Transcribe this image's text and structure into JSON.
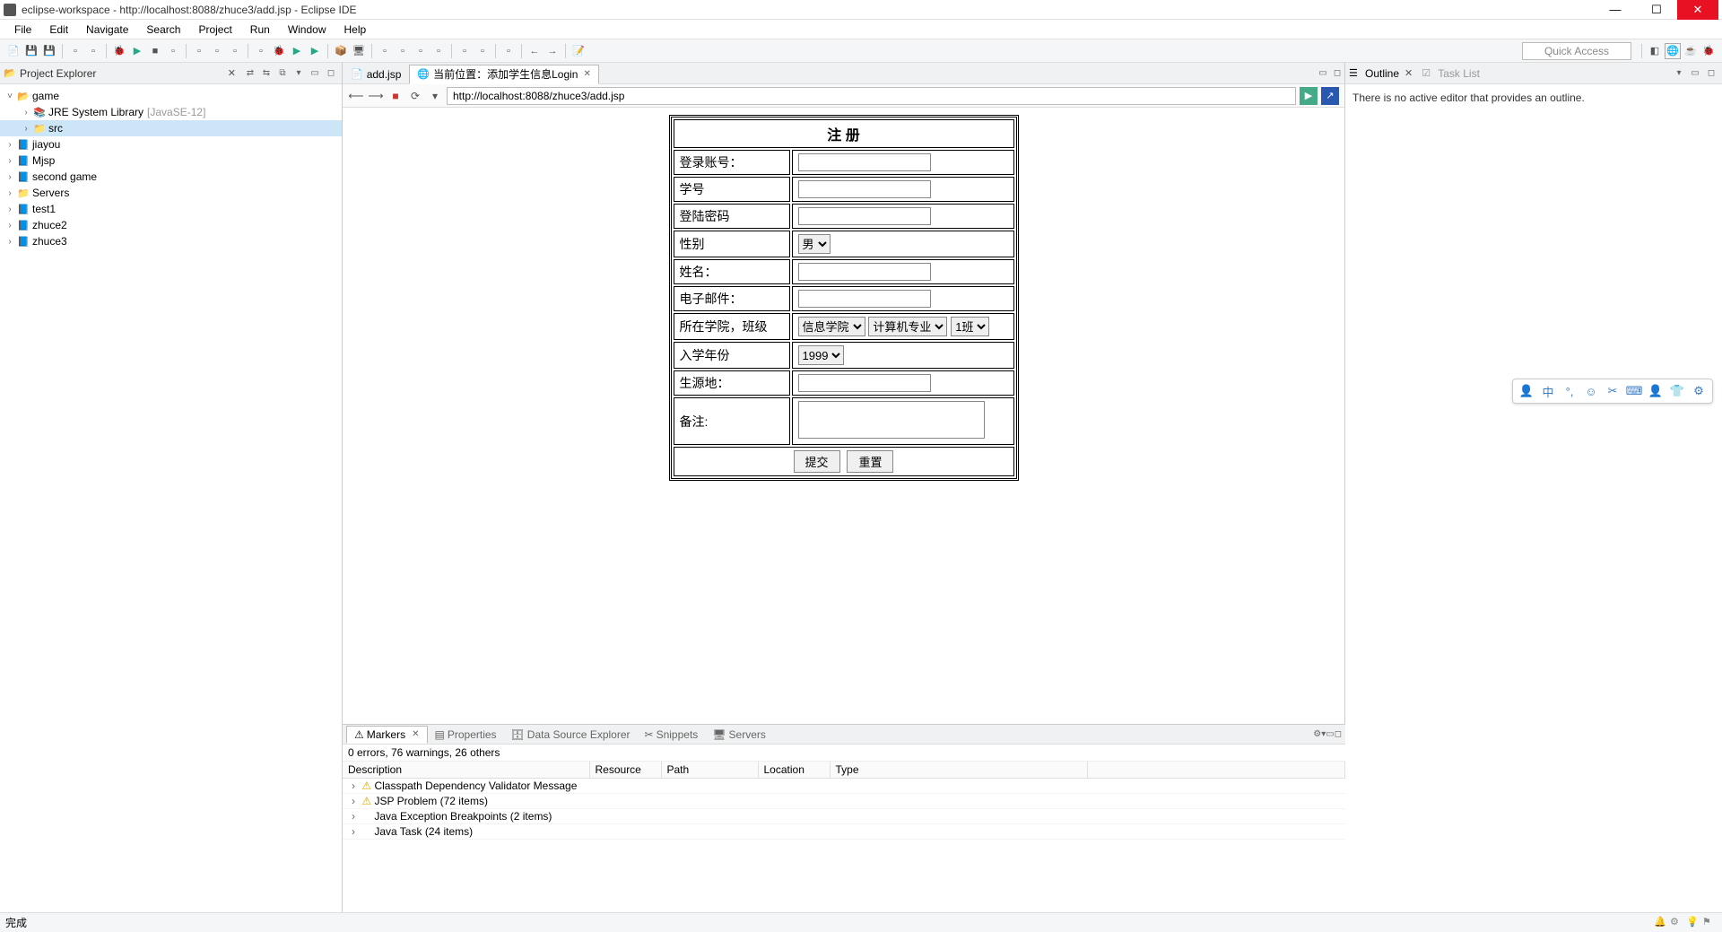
{
  "title": "eclipse-workspace - http://localhost:8088/zhuce3/add.jsp - Eclipse IDE",
  "menu": [
    "File",
    "Edit",
    "Navigate",
    "Search",
    "Project",
    "Run",
    "Window",
    "Help"
  ],
  "quick_access": "Quick Access",
  "project_explorer": {
    "title": "Project Explorer",
    "items": [
      {
        "depth": 0,
        "tw": "˅",
        "icon": "📂",
        "label": "game"
      },
      {
        "depth": 1,
        "tw": "›",
        "icon": "📚",
        "label": "JRE System Library",
        "suffix": "[JavaSE-12]"
      },
      {
        "depth": 1,
        "tw": "›",
        "icon": "📁",
        "label": "src",
        "selected": true
      },
      {
        "depth": 0,
        "tw": "›",
        "icon": "📘",
        "label": "jiayou"
      },
      {
        "depth": 0,
        "tw": "›",
        "icon": "📘",
        "label": "Mjsp"
      },
      {
        "depth": 0,
        "tw": "›",
        "icon": "📘",
        "label": "second game"
      },
      {
        "depth": 0,
        "tw": "›",
        "icon": "📁",
        "label": "Servers"
      },
      {
        "depth": 0,
        "tw": "›",
        "icon": "📘",
        "label": "test1"
      },
      {
        "depth": 0,
        "tw": "›",
        "icon": "📘",
        "label": "zhuce2"
      },
      {
        "depth": 0,
        "tw": "›",
        "icon": "📘",
        "label": "zhuce3"
      }
    ]
  },
  "editor": {
    "tabs": [
      {
        "icon": "📄",
        "label": "add.jsp",
        "active": false
      },
      {
        "icon": "🌐",
        "label": "当前位置：添加学生信息Login",
        "active": true
      }
    ],
    "url": "http://localhost:8088/zhuce3/add.jsp"
  },
  "form": {
    "title": "注 册",
    "rows": {
      "account": "登录账号：",
      "student_id": "学号",
      "password": "登陆密码",
      "gender": "性别",
      "gender_value": "男",
      "name": "姓名：",
      "email": "电子邮件：",
      "college": "所在学院，班级",
      "college_value": "信息学院",
      "major_value": "计算机专业",
      "class_value": "1班",
      "year": "入学年份",
      "year_value": "1999",
      "origin": "生源地：",
      "remark": "备注:"
    },
    "submit": "提交",
    "reset": "重置"
  },
  "outline": {
    "title": "Outline",
    "tasklist": "Task List",
    "message": "There is no active editor that provides an outline."
  },
  "markers": {
    "tab": "Markers",
    "tabs_other": [
      "Properties",
      "Data Source Explorer",
      "Snippets",
      "Servers"
    ],
    "summary": "0 errors, 76 warnings, 26 others",
    "columns": [
      "Description",
      "Resource",
      "Path",
      "Location",
      "Type"
    ],
    "rows": [
      {
        "warn": true,
        "label": "Classpath Dependency Validator Message"
      },
      {
        "warn": true,
        "label": "JSP Problem (72 items)"
      },
      {
        "warn": false,
        "label": "Java Exception Breakpoints (2 items)"
      },
      {
        "warn": false,
        "label": "Java Task (24 items)"
      }
    ]
  },
  "status": "完成"
}
